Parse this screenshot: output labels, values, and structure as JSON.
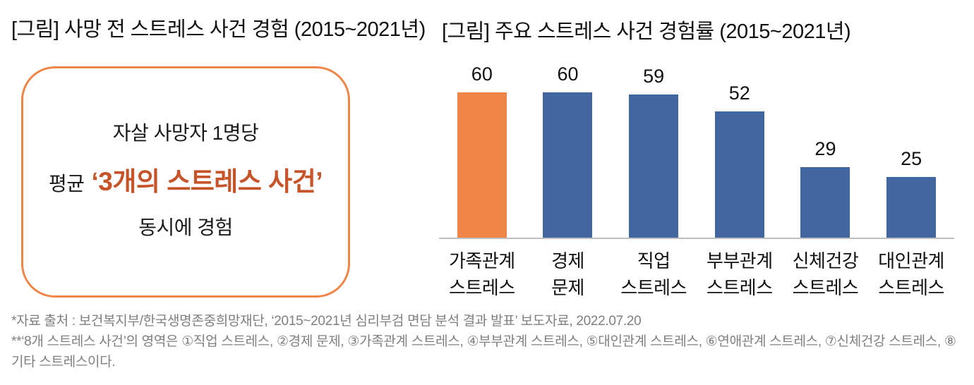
{
  "figures": {
    "left": {
      "title": "[그림] 사망 전 스트레스 사건 경험 (2015~2021년)",
      "box": {
        "line1": "자살 사망자 1명당",
        "line2_prefix": "평균",
        "line2_highlight": "‘3개의 스트레스 사건’",
        "line3": "동시에 경험"
      }
    },
    "right": {
      "title": "[그림] 주요 스트레스 사건 경험률 (2015~2021년)"
    }
  },
  "chart_data": {
    "type": "bar",
    "title": "[그림] 주요 스트레스 사건 경험률 (2015~2021년)",
    "categories": [
      [
        "가족관계",
        "스트레스"
      ],
      [
        "경제",
        "문제"
      ],
      [
        "직업",
        "스트레스"
      ],
      [
        "부부관계",
        "스트레스"
      ],
      [
        "신체건강",
        "스트레스"
      ],
      [
        "대인관계",
        "스트레스"
      ]
    ],
    "values": [
      60,
      60,
      59,
      52,
      29,
      25
    ],
    "value_labels": true,
    "highlight_index": 0,
    "highlight_color": "#F08548",
    "bar_color": "#4267A0",
    "ylim": [
      0,
      70
    ],
    "grid": false,
    "legend": "none",
    "xlabel": "",
    "ylabel": ""
  },
  "footnotes": [
    "*자료 출처 : 보건복지부/한국생명존중희망재단, ‘2015~2021년 심리부검 면담 분석 결과 발표’ 보도자료, 2022.07.20",
    "**‘8개 스트레스 사건’의 영역은 ①직업 스트레스, ②경제 문제, ③가족관계 스트레스, ④부부관계 스트레스, ⑤대인관계 스트레스, ⑥연애관계 스트레스, ⑦신체건강 스트레스, ⑧기타 스트레스이다."
  ],
  "colors": {
    "accent_orange": "#F08548",
    "highlight_text": "#C75328",
    "bar_blue": "#4267A0",
    "axis_line": "#BFBFBF",
    "footnote_gray": "#7F7F7F"
  }
}
